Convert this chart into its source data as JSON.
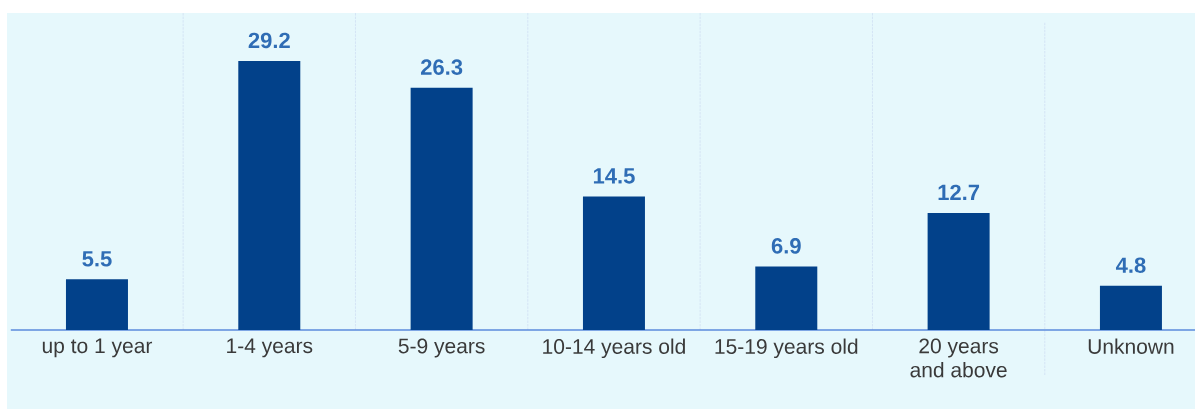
{
  "chart_data": {
    "type": "bar",
    "categories": [
      "up to 1 year",
      "1-4 years",
      "5-9 years",
      "10-14 years old",
      "15-19 years old",
      "20 years and above",
      "Unknown"
    ],
    "values": [
      5.5,
      29.2,
      26.3,
      14.5,
      6.9,
      12.7,
      4.8
    ],
    "color": "#02418a",
    "data_labels": true,
    "grid": "x"
  }
}
